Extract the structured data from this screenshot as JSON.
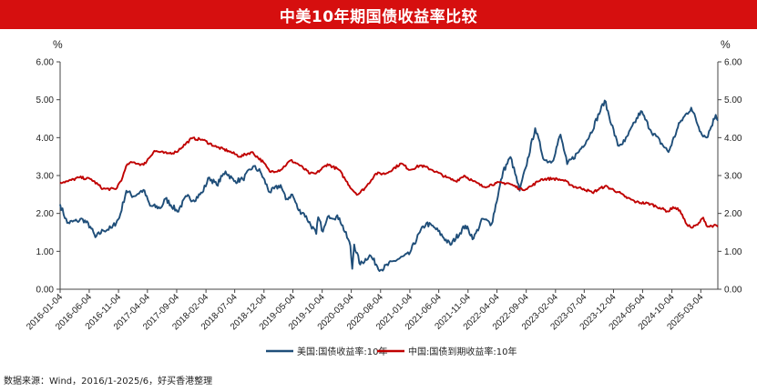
{
  "header": {
    "title": "中美10年期国债收益率比较"
  },
  "footer": {
    "source": "数据来源：Wind，2016/1-2025/6，好买香港整理"
  },
  "colors": {
    "banner": "#d60f0f",
    "us_series": "#1f4e79",
    "cn_series": "#c00000"
  },
  "chart_data": {
    "type": "line",
    "y_unit_left": "%",
    "y_unit_right": "%",
    "ylim": [
      0,
      6
    ],
    "y_ticks": [
      "0.00",
      "1.00",
      "2.00",
      "3.00",
      "4.00",
      "5.00",
      "6.00"
    ],
    "xlim": [
      "2016-01-04",
      "2025-06-01"
    ],
    "x_ticks": [
      "2016-01-04",
      "2016-06-04",
      "2016-11-04",
      "2017-04-04",
      "2017-09-04",
      "2018-02-04",
      "2018-07-04",
      "2018-12-04",
      "2019-05-04",
      "2019-10-04",
      "2020-03-04",
      "2020-08-04",
      "2021-01-04",
      "2021-06-04",
      "2021-11-04",
      "2022-04-04",
      "2022-09-04",
      "2023-02-04",
      "2023-07-04",
      "2023-12-04",
      "2024-05-04",
      "2024-10-04",
      "2025-03-04"
    ],
    "grid": false,
    "legend_position": "bottom",
    "series": [
      {
        "name": "美国:国债收益率:10年",
        "color": "#1f4e79",
        "points": [
          [
            "2016-01-04",
            2.24
          ],
          [
            "2016-02-10",
            1.75
          ],
          [
            "2016-04-01",
            1.8
          ],
          [
            "2016-05-01",
            1.85
          ],
          [
            "2016-06-10",
            1.65
          ],
          [
            "2016-07-06",
            1.37
          ],
          [
            "2016-08-15",
            1.55
          ],
          [
            "2016-10-01",
            1.62
          ],
          [
            "2016-11-08",
            1.88
          ],
          [
            "2016-12-15",
            2.6
          ],
          [
            "2017-01-20",
            2.45
          ],
          [
            "2017-03-14",
            2.62
          ],
          [
            "2017-04-18",
            2.2
          ],
          [
            "2017-06-14",
            2.15
          ],
          [
            "2017-07-07",
            2.39
          ],
          [
            "2017-09-07",
            2.05
          ],
          [
            "2017-10-27",
            2.45
          ],
          [
            "2017-12-01",
            2.35
          ],
          [
            "2018-01-15",
            2.55
          ],
          [
            "2018-02-21",
            2.95
          ],
          [
            "2018-04-01",
            2.75
          ],
          [
            "2018-05-17",
            3.11
          ],
          [
            "2018-07-01",
            2.85
          ],
          [
            "2018-08-15",
            2.9
          ],
          [
            "2018-10-08",
            3.24
          ],
          [
            "2018-11-15",
            3.1
          ],
          [
            "2019-01-03",
            2.56
          ],
          [
            "2019-03-01",
            2.75
          ],
          [
            "2019-03-28",
            2.37
          ],
          [
            "2019-05-01",
            2.5
          ],
          [
            "2019-06-03",
            2.08
          ],
          [
            "2019-07-01",
            2.0
          ],
          [
            "2019-09-03",
            1.46
          ],
          [
            "2019-09-13",
            1.9
          ],
          [
            "2019-10-08",
            1.52
          ],
          [
            "2019-11-08",
            1.94
          ],
          [
            "2020-01-02",
            1.88
          ],
          [
            "2020-02-28",
            1.15
          ],
          [
            "2020-03-09",
            0.54
          ],
          [
            "2020-03-19",
            1.18
          ],
          [
            "2020-04-20",
            0.65
          ],
          [
            "2020-06-08",
            0.9
          ],
          [
            "2020-08-04",
            0.51
          ],
          [
            "2020-10-15",
            0.75
          ],
          [
            "2020-12-31",
            0.92
          ],
          [
            "2021-02-25",
            1.5
          ],
          [
            "2021-03-31",
            1.74
          ],
          [
            "2021-05-15",
            1.62
          ],
          [
            "2021-08-04",
            1.17
          ],
          [
            "2021-10-21",
            1.68
          ],
          [
            "2021-12-03",
            1.34
          ],
          [
            "2022-01-20",
            1.86
          ],
          [
            "2022-03-07",
            1.72
          ],
          [
            "2022-05-06",
            3.1
          ],
          [
            "2022-06-14",
            3.49
          ],
          [
            "2022-08-01",
            2.6
          ],
          [
            "2022-09-01",
            3.2
          ],
          [
            "2022-10-21",
            4.25
          ],
          [
            "2022-12-07",
            3.41
          ],
          [
            "2023-01-18",
            3.37
          ],
          [
            "2023-03-02",
            4.08
          ],
          [
            "2023-04-06",
            3.3
          ],
          [
            "2023-06-01",
            3.6
          ],
          [
            "2023-08-01",
            4.05
          ],
          [
            "2023-10-19",
            4.98
          ],
          [
            "2023-12-27",
            3.79
          ],
          [
            "2024-02-01",
            3.9
          ],
          [
            "2024-04-25",
            4.7
          ],
          [
            "2024-06-15",
            4.2
          ],
          [
            "2024-09-16",
            3.62
          ],
          [
            "2024-11-15",
            4.4
          ],
          [
            "2025-01-13",
            4.79
          ],
          [
            "2025-03-04",
            4.15
          ],
          [
            "2025-04-04",
            4.0
          ],
          [
            "2025-05-21",
            4.6
          ],
          [
            "2025-06-01",
            4.45
          ]
        ]
      },
      {
        "name": "中国:国债到期收益率:10年",
        "color": "#c00000",
        "points": [
          [
            "2016-01-04",
            2.82
          ],
          [
            "2016-02-15",
            2.85
          ],
          [
            "2016-04-15",
            2.95
          ],
          [
            "2016-06-15",
            2.9
          ],
          [
            "2016-08-15",
            2.65
          ],
          [
            "2016-10-21",
            2.64
          ],
          [
            "2016-11-25",
            2.95
          ],
          [
            "2016-12-20",
            3.3
          ],
          [
            "2017-01-20",
            3.35
          ],
          [
            "2017-03-15",
            3.28
          ],
          [
            "2017-05-10",
            3.65
          ],
          [
            "2017-07-15",
            3.58
          ],
          [
            "2017-09-01",
            3.62
          ],
          [
            "2017-11-22",
            3.98
          ],
          [
            "2018-01-15",
            3.95
          ],
          [
            "2018-04-01",
            3.75
          ],
          [
            "2018-06-01",
            3.65
          ],
          [
            "2018-08-01",
            3.5
          ],
          [
            "2018-10-01",
            3.62
          ],
          [
            "2018-12-01",
            3.35
          ],
          [
            "2019-01-03",
            3.1
          ],
          [
            "2019-03-01",
            3.15
          ],
          [
            "2019-04-22",
            3.4
          ],
          [
            "2019-06-01",
            3.3
          ],
          [
            "2019-08-01",
            3.05
          ],
          [
            "2019-09-01",
            3.05
          ],
          [
            "2019-11-01",
            3.3
          ],
          [
            "2019-12-31",
            3.15
          ],
          [
            "2020-02-01",
            2.9
          ],
          [
            "2020-03-10",
            2.62
          ],
          [
            "2020-04-08",
            2.5
          ],
          [
            "2020-05-20",
            2.7
          ],
          [
            "2020-07-10",
            3.05
          ],
          [
            "2020-09-01",
            3.05
          ],
          [
            "2020-11-20",
            3.32
          ],
          [
            "2021-01-04",
            3.15
          ],
          [
            "2021-03-01",
            3.27
          ],
          [
            "2021-05-01",
            3.15
          ],
          [
            "2021-07-15",
            2.95
          ],
          [
            "2021-09-01",
            2.85
          ],
          [
            "2021-10-15",
            3.0
          ],
          [
            "2021-12-01",
            2.85
          ],
          [
            "2022-01-24",
            2.7
          ],
          [
            "2022-04-01",
            2.8
          ],
          [
            "2022-06-01",
            2.8
          ],
          [
            "2022-08-15",
            2.62
          ],
          [
            "2022-10-01",
            2.72
          ],
          [
            "2022-11-20",
            2.9
          ],
          [
            "2023-01-20",
            2.92
          ],
          [
            "2023-03-15",
            2.88
          ],
          [
            "2023-05-15",
            2.7
          ],
          [
            "2023-07-01",
            2.65
          ],
          [
            "2023-08-15",
            2.55
          ],
          [
            "2023-10-20",
            2.72
          ],
          [
            "2023-12-31",
            2.56
          ],
          [
            "2024-02-01",
            2.44
          ],
          [
            "2024-04-01",
            2.3
          ],
          [
            "2024-06-15",
            2.25
          ],
          [
            "2024-08-01",
            2.15
          ],
          [
            "2024-09-15",
            2.05
          ],
          [
            "2024-10-10",
            2.17
          ],
          [
            "2024-11-15",
            2.08
          ],
          [
            "2024-12-15",
            1.75
          ],
          [
            "2025-01-15",
            1.62
          ],
          [
            "2025-02-15",
            1.7
          ],
          [
            "2025-03-17",
            1.89
          ],
          [
            "2025-04-08",
            1.65
          ],
          [
            "2025-05-10",
            1.68
          ],
          [
            "2025-06-01",
            1.65
          ]
        ]
      }
    ]
  }
}
